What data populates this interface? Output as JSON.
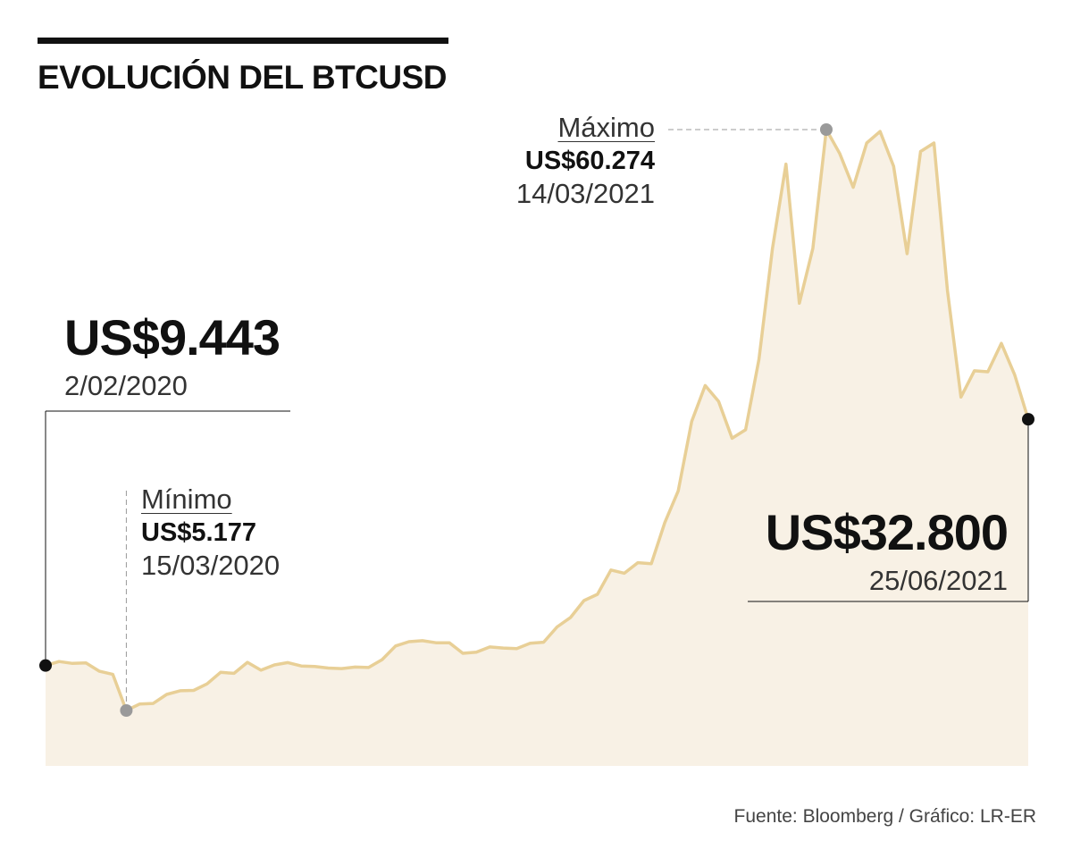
{
  "title": "EVOLUCIÓN DEL BTCUSD",
  "source": "Fuente: Bloomberg / Gráfico: LR-ER",
  "colors": {
    "area_fill": "#f8f1e5",
    "line": "#e8cf96",
    "marker_start_end": "#111111",
    "marker_min_max": "#9a9a9a"
  },
  "annotations": {
    "start": {
      "value": "US$9.443",
      "date": "2/02/2020"
    },
    "min": {
      "label": "Mínimo",
      "value": "US$5.177",
      "date": "15/03/2020"
    },
    "max": {
      "label": "Máximo",
      "value": "US$60.274",
      "date": "14/03/2021"
    },
    "end": {
      "value": "US$32.800",
      "date": "25/06/2021"
    }
  },
  "chart_data": {
    "type": "area",
    "title": "EVOLUCIÓN DEL BTCUSD",
    "xlabel": "",
    "ylabel": "",
    "x_range": [
      "2/02/2020",
      "25/06/2021"
    ],
    "y_unit": "US$",
    "ylim": [
      0,
      62000
    ],
    "grid": false,
    "series": [
      {
        "values": [
          9443,
          9820,
          9640,
          9690,
          8900,
          8600,
          5177,
          5800,
          5850,
          6700,
          7050,
          7080,
          7700,
          8800,
          8700,
          9750,
          9000,
          9500,
          9720,
          9400,
          9350,
          9200,
          9150,
          9300,
          9250,
          10000,
          11300,
          11700,
          11800,
          11600,
          11600,
          10600,
          10700,
          11200,
          11100,
          11050,
          11550,
          11650,
          13100,
          14000,
          15600,
          16200,
          18500,
          18200,
          19200,
          19100,
          23000,
          26000,
          32600,
          36000,
          34500,
          31000,
          31800,
          38500,
          49000,
          57000,
          43800,
          49000,
          60274,
          58000,
          54800,
          59000,
          60100,
          56800,
          48500,
          58200,
          59000,
          45000,
          34900,
          37400,
          37300,
          40000,
          37000,
          32800
        ]
      }
    ]
  }
}
